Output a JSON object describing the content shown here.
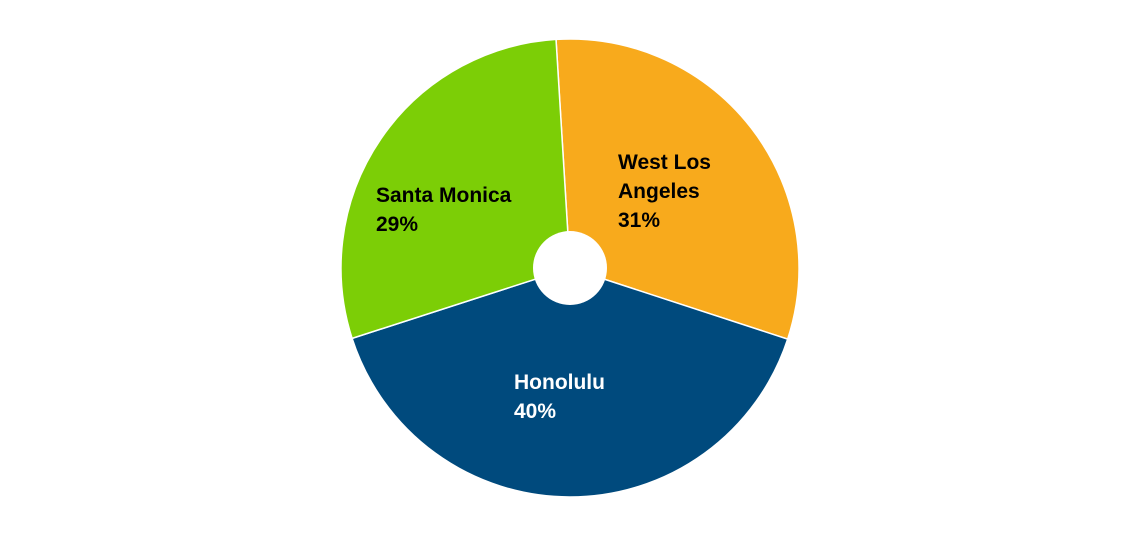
{
  "chart_data": {
    "type": "pie",
    "title": "",
    "slices": [
      {
        "label": "West Los Angeles",
        "label_lines": [
          "West Los",
          "Angeles"
        ],
        "value": 31,
        "value_label": "31%",
        "color": "#F8AA1C",
        "label_color": "#000000"
      },
      {
        "label": "Honolulu",
        "label_lines": [
          "Honolulu"
        ],
        "value": 40,
        "value_label": "40%",
        "color": "#004A7D",
        "label_color": "#ffffff"
      },
      {
        "label": "Santa Monica",
        "label_lines": [
          "Santa Monica"
        ],
        "value": 29,
        "value_label": "29%",
        "color": "#7CCE06",
        "label_color": "#000000"
      }
    ],
    "legend": "none",
    "center_hole": true
  }
}
